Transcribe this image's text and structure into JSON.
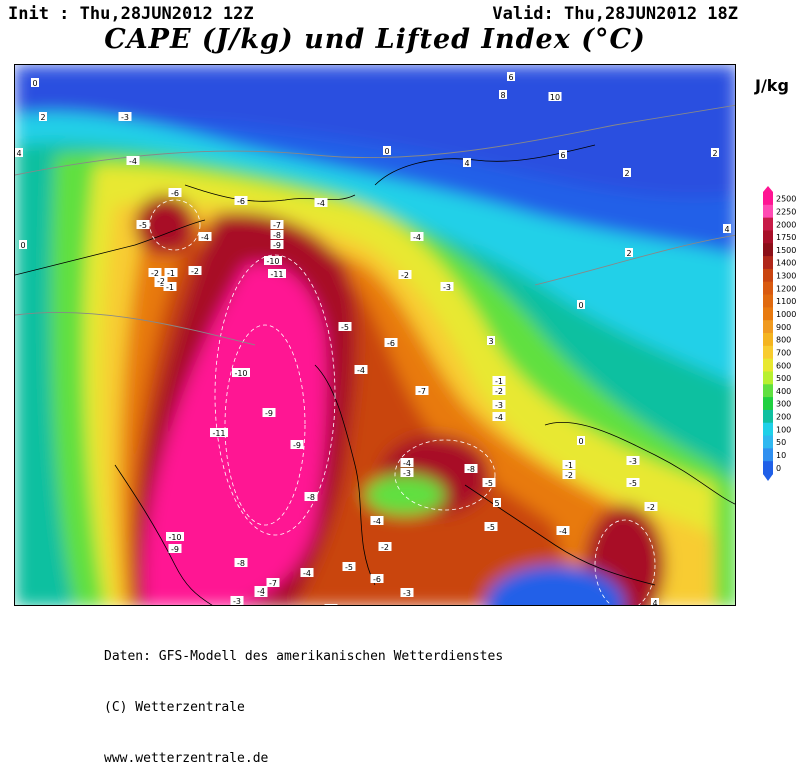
{
  "header": {
    "init": "Init : Thu,28JUN2012 12Z",
    "valid": "Valid: Thu,28JUN2012 18Z",
    "title": "CAPE (J/kg) und Lifted Index (°C)"
  },
  "legend": {
    "unit": "J/kg",
    "levels": [
      "2500",
      "2250",
      "2000",
      "1750",
      "1500",
      "1400",
      "1300",
      "1200",
      "1100",
      "1000",
      "900",
      "800",
      "700",
      "600",
      "500",
      "400",
      "300",
      "200",
      "100",
      "50",
      "10",
      "0"
    ],
    "colors": [
      "#ff1493",
      "#ff4ab3",
      "#c71a47",
      "#a80f28",
      "#8c0f18",
      "#b0271a",
      "#c94410",
      "#d95a10",
      "#e06a10",
      "#e87a10",
      "#f09a20",
      "#f4b420",
      "#f8cc30",
      "#e8e830",
      "#b8f030",
      "#60e040",
      "#20d040",
      "#10c0a0",
      "#20d0e8",
      "#30b8f0",
      "#3090f0",
      "#2060e8"
    ]
  },
  "map": {
    "lifted_index_labels": [
      {
        "v": "-3"
      },
      {
        "v": "-4"
      },
      {
        "v": "-6"
      },
      {
        "v": "-5"
      },
      {
        "v": "-4"
      },
      {
        "v": "-6"
      },
      {
        "v": "-4"
      },
      {
        "v": "-7"
      },
      {
        "v": "-8"
      },
      {
        "v": "-9"
      },
      {
        "v": "-10"
      },
      {
        "v": "-11"
      },
      {
        "v": "-4"
      },
      {
        "v": "-2"
      },
      {
        "v": "-3"
      },
      {
        "v": "-5"
      },
      {
        "v": "-6"
      },
      {
        "v": "-4"
      },
      {
        "v": "-7"
      },
      {
        "v": "-10"
      },
      {
        "v": "-9"
      },
      {
        "v": "-11"
      },
      {
        "v": "-9"
      },
      {
        "v": "-8"
      },
      {
        "v": "-10"
      },
      {
        "v": "-9"
      },
      {
        "v": "-8"
      },
      {
        "v": "-7"
      },
      {
        "v": "-4"
      },
      {
        "v": "-5"
      },
      {
        "v": "-6"
      },
      {
        "v": "-3"
      },
      {
        "v": "-4"
      },
      {
        "v": "-3"
      },
      {
        "v": "-8"
      },
      {
        "v": "-5"
      },
      {
        "v": "-1"
      },
      {
        "v": "-2"
      },
      {
        "v": "-3"
      },
      {
        "v": "-4"
      },
      {
        "v": "-1"
      },
      {
        "v": "-2"
      },
      {
        "v": "-4"
      },
      {
        "v": "-5"
      },
      {
        "v": "-3"
      },
      {
        "v": "-2"
      },
      {
        "v": "-3"
      },
      {
        "v": "-5"
      },
      {
        "v": "-4"
      },
      {
        "v": "-2"
      },
      {
        "v": "-5"
      },
      {
        "v": "-3"
      },
      {
        "v": "-2"
      },
      {
        "v": "-3"
      },
      {
        "v": "0"
      },
      {
        "v": "2"
      },
      {
        "v": "4"
      },
      {
        "v": "2"
      },
      {
        "v": "0"
      },
      {
        "v": "2"
      },
      {
        "v": "6"
      },
      {
        "v": "8"
      },
      {
        "v": "10"
      },
      {
        "v": "4"
      },
      {
        "v": "6"
      },
      {
        "v": "4"
      },
      {
        "v": "2"
      },
      {
        "v": "0"
      },
      {
        "v": "3"
      },
      {
        "v": "0"
      },
      {
        "v": "0"
      },
      {
        "v": "-1"
      },
      {
        "v": "-2"
      },
      {
        "v": "-1"
      },
      {
        "v": "-2"
      },
      {
        "v": "-4"
      },
      {
        "v": "-3"
      },
      {
        "v": "4"
      },
      {
        "v": "5"
      }
    ]
  },
  "footer": {
    "line1": "Daten: GFS-Modell des amerikanischen Wetterdienstes",
    "line2": "(C) Wetterzentrale",
    "line3": "www.wetterzentrale.de"
  }
}
